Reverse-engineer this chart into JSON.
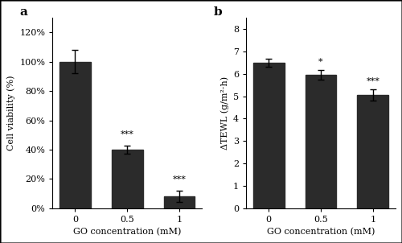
{
  "panel_a": {
    "categories": [
      "0",
      "0.5",
      "1"
    ],
    "values": [
      100,
      40,
      8
    ],
    "errors": [
      8,
      3,
      4
    ],
    "ylabel": "Cell viability (%)",
    "xlabel": "GO concentration (mM)",
    "ylim": [
      0,
      130
    ],
    "yticks": [
      0,
      20,
      40,
      60,
      80,
      100,
      120
    ],
    "yticklabels": [
      "0%",
      "20%",
      "40%",
      "60%",
      "80%",
      "100%",
      "120%"
    ],
    "label": "a",
    "significance": [
      "",
      "***",
      "***"
    ],
    "bar_color": "#2b2b2b",
    "sig_offsets": [
      0,
      5,
      5
    ]
  },
  "panel_b": {
    "categories": [
      "0",
      "0.5",
      "1"
    ],
    "values": [
      6.5,
      5.95,
      5.05
    ],
    "errors": [
      0.18,
      0.22,
      0.25
    ],
    "ylabel": "ΔTEWL (g/m²·h)",
    "xlabel": "GO concentration (mM)",
    "ylim": [
      0,
      8.5
    ],
    "yticks": [
      0,
      1,
      2,
      3,
      4,
      5,
      6,
      7,
      8
    ],
    "yticklabels": [
      "0",
      "1",
      "2",
      "3",
      "4",
      "5",
      "6",
      "7",
      "8"
    ],
    "label": "b",
    "significance": [
      "",
      "*",
      "***"
    ],
    "bar_color": "#2b2b2b",
    "sig_offsets": [
      0,
      0.18,
      0.18
    ]
  },
  "figure": {
    "facecolor": "#ffffff",
    "border_color": "#000000",
    "border_linewidth": 1.0,
    "font_family": "serif"
  }
}
